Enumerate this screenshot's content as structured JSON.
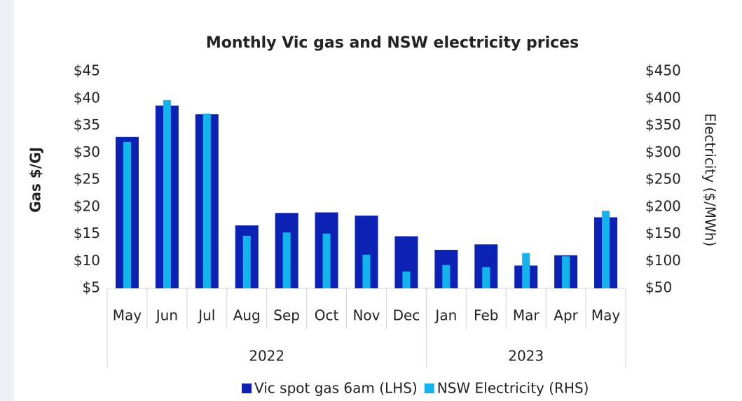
{
  "chart_data": {
    "type": "bar",
    "title": "Monthly Vic gas and NSW electricity prices",
    "y_label": "Gas $/GJ",
    "y2_label": "Electricity ($/MWh)",
    "categories": [
      "May",
      "Jun",
      "Jul",
      "Aug",
      "Sep",
      "Oct",
      "Nov",
      "Dec",
      "Jan",
      "Feb",
      "Mar",
      "Apr",
      "May"
    ],
    "groups": [
      {
        "label": "2022",
        "count": 8
      },
      {
        "label": "2023",
        "count": 5
      }
    ],
    "series": [
      {
        "name": "Vic spot gas 6am (LHS)",
        "color": "#0b22b5",
        "values": [
          32.9,
          38.7,
          37.1,
          16.6,
          18.9,
          19.0,
          18.4,
          14.6,
          12.1,
          13.1,
          9.2,
          11.1,
          18.1
        ]
      },
      {
        "name": "NSW Electricity (RHS)",
        "color": "#12b4ec",
        "axis": "y2",
        "values": [
          320,
          397,
          372,
          147,
          153,
          151,
          112,
          81,
          93,
          89,
          115,
          109,
          193
        ]
      }
    ],
    "ylim": [
      5,
      45
    ],
    "yticks": [
      {
        "value": 5,
        "label": "$5"
      },
      {
        "value": 10,
        "label": "$10"
      },
      {
        "value": 15,
        "label": "$15"
      },
      {
        "value": 20,
        "label": "$20"
      },
      {
        "value": 25,
        "label": "$25"
      },
      {
        "value": 30,
        "label": "$30"
      },
      {
        "value": 35,
        "label": "$35"
      },
      {
        "value": 40,
        "label": "$40"
      },
      {
        "value": 45,
        "label": "$45"
      }
    ],
    "y2lim": [
      50,
      450
    ],
    "y2ticks": [
      {
        "value": 50,
        "label": "$50"
      },
      {
        "value": 100,
        "label": "$100"
      },
      {
        "value": 150,
        "label": "$150"
      },
      {
        "value": 200,
        "label": "$200"
      },
      {
        "value": 250,
        "label": "$250"
      },
      {
        "value": 300,
        "label": "$300"
      },
      {
        "value": 350,
        "label": "$350"
      },
      {
        "value": 400,
        "label": "$400"
      },
      {
        "value": 450,
        "label": "$450"
      }
    ],
    "legend": "bottom"
  }
}
